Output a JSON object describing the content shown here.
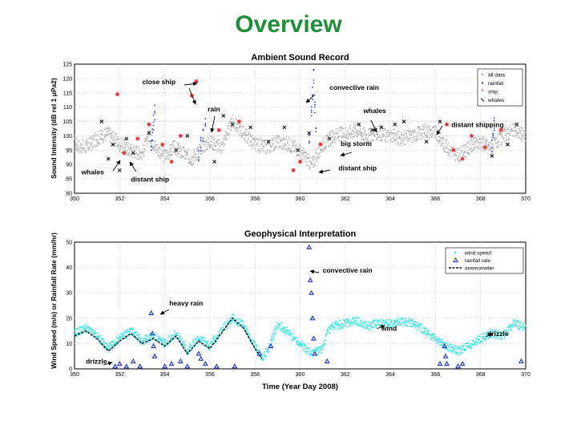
{
  "slide": {
    "title": "Overview"
  },
  "chart_data": [
    {
      "type": "scatter",
      "title": "Ambient Sound Record",
      "xlabel": "",
      "ylabel": "Sound Intensity (dB rel 1 μPa2)",
      "xlim": [
        350,
        370
      ],
      "ylim": [
        80,
        125
      ],
      "xticks": [
        350,
        352,
        354,
        356,
        358,
        360,
        362,
        364,
        366,
        368,
        370
      ],
      "yticks": [
        80,
        85,
        90,
        95,
        100,
        105,
        110,
        115,
        120,
        125
      ],
      "grid": true,
      "legend_position": "top-right",
      "legend": [
        "all data",
        "rainfall",
        "ship",
        "whales"
      ],
      "colors": {
        "all data": "#aaaaaa",
        "rainfall": "#1a2fd6",
        "ship": "#e8262a",
        "whales": "#111111"
      },
      "baseline": {
        "x": [
          350,
          350.5,
          351,
          351.5,
          352,
          352.5,
          353,
          353.3,
          353.6,
          354,
          354.4,
          354.8,
          355.2,
          355.6,
          356,
          356.5,
          357,
          357.5,
          358,
          358.5,
          359,
          359.5,
          360,
          360.3,
          360.5,
          360.8,
          361,
          361.5,
          362,
          362.5,
          363,
          363.5,
          364,
          364.5,
          365,
          365.5,
          366,
          366.5,
          367,
          367.5,
          368,
          368.5,
          369,
          369.5,
          370
        ],
        "y": [
          97,
          96,
          99,
          101,
          97,
          95,
          94,
          100,
          96,
          93,
          96,
          94,
          92,
          96,
          98,
          96,
          105,
          101,
          97,
          96,
          98,
          97,
          95,
          92,
          90,
          94,
          97,
          100,
          101,
          102,
          100,
          101,
          100,
          99,
          100,
          102,
          101,
          96,
          93,
          96,
          98,
          96,
          100,
          102,
          100
        ]
      },
      "rainfall": {
        "x": [
          353.4,
          353.45,
          353.5,
          353.55,
          355.5,
          355.6,
          355.7,
          355.8,
          360.4,
          360.5,
          360.55,
          360.6,
          360.65,
          360.7,
          368.5,
          368.55,
          368.6
        ],
        "y": [
          96,
          100,
          105,
          108,
          92,
          97,
          101,
          105,
          100,
          108,
          114,
          121,
          110,
          102,
          96,
          101,
          104
        ]
      },
      "ship": {
        "x": [
          351.9,
          352.2,
          352.8,
          353.3,
          353.9,
          354.3,
          354.7,
          355.2,
          355.4,
          356.4,
          357.3,
          359.7,
          360.0,
          360.9,
          366.5,
          366.8,
          367.2,
          367.6,
          368.2,
          368.9
        ],
        "y": [
          114.5,
          94,
          99,
          104,
          97,
          91,
          100,
          114,
          119,
          102,
          105,
          88,
          91,
          97,
          104,
          95,
          92,
          100,
          96,
          102
        ]
      },
      "whales": {
        "x": [
          351.2,
          351.5,
          351.7,
          352.0,
          352.3,
          352.6,
          353.3,
          354.5,
          355.0,
          356.2,
          356.6,
          357.0,
          357.8,
          358.6,
          359.3,
          359.9,
          360.4,
          361.3,
          362.6,
          363.2,
          363.6,
          364.2,
          364.6,
          365.6,
          366.2,
          368.5,
          369.2,
          369.6
        ],
        "y": [
          105,
          92,
          97,
          88,
          99,
          94,
          101,
          95,
          100,
          91,
          107,
          104,
          103,
          98,
          103,
          95,
          101,
          99,
          104,
          102,
          103,
          104,
          105,
          98,
          105,
          93,
          97,
          104
        ]
      },
      "annotations": [
        {
          "text": "close ship",
          "x": 353.0,
          "y": 118
        },
        {
          "text": "convective rain",
          "x": 361.3,
          "y": 116
        },
        {
          "text": "rain",
          "x": 355.9,
          "y": 108.5
        },
        {
          "text": "whales",
          "x": 362.8,
          "y": 108
        },
        {
          "text": "distant shipping",
          "x": 366.7,
          "y": 103
        },
        {
          "text": "big storm",
          "x": 361.8,
          "y": 96.5
        },
        {
          "text": "distant ship",
          "x": 361.7,
          "y": 88
        },
        {
          "text": "whales",
          "x": 350.3,
          "y": 86.5
        },
        {
          "text": "distant ship",
          "x": 352.5,
          "y": 84
        }
      ]
    },
    {
      "type": "scatter",
      "title": "Geophysical Interpretation",
      "xlabel": "Time (Year Day 2008)",
      "ylabel": "Wind Speed (m/s) or Rainfall Rate (mm/hr)",
      "xlim": [
        350,
        370
      ],
      "ylim": [
        0,
        50
      ],
      "xticks": [
        350,
        352,
        354,
        356,
        358,
        360,
        362,
        364,
        366,
        368,
        370
      ],
      "yticks": [
        0,
        10,
        20,
        30,
        40,
        50
      ],
      "grid": true,
      "legend_position": "top-right",
      "legend": [
        "wind speed",
        "rainfall rate",
        "anemometer"
      ],
      "colors": {
        "wind speed": "#2ee6e6",
        "rainfall rate": "#1a2fd6",
        "anemometer": "#111111"
      },
      "wind": {
        "x": [
          350,
          350.5,
          351,
          351.5,
          352,
          352.5,
          353,
          353.5,
          354,
          354.5,
          355,
          355.5,
          356,
          356.5,
          357,
          357.5,
          358,
          358.3,
          358.6,
          359,
          359.5,
          360,
          360.5,
          361,
          361.2,
          361.5,
          362,
          362.5,
          363,
          363.5,
          364,
          364.5,
          365,
          365.5,
          366,
          366.5,
          367,
          367.5,
          368,
          368.5,
          369,
          369.5,
          370
        ],
        "y": [
          14,
          16,
          13,
          8,
          12,
          15,
          11,
          13,
          10,
          14,
          7,
          12,
          9,
          15,
          20,
          17,
          9,
          4,
          8,
          18,
          14,
          10,
          6,
          8,
          14,
          17,
          18,
          19,
          17,
          18,
          18,
          19,
          18,
          15,
          12,
          9,
          7,
          9,
          12,
          14,
          13,
          18,
          16
        ]
      },
      "anemometer": {
        "x": [
          350,
          350.5,
          351,
          351.5,
          352,
          352.5,
          353,
          353.5,
          354,
          354.5,
          355,
          355.5,
          356,
          356.5,
          357,
          357.5,
          358,
          358.3
        ],
        "y": [
          13,
          15,
          12,
          7,
          11,
          14,
          10,
          12,
          9,
          13,
          6,
          11,
          8,
          14,
          20,
          16,
          8,
          4
        ]
      },
      "rainfall": {
        "x": [
          351.8,
          352.0,
          352.3,
          352.6,
          352.9,
          353.4,
          353.45,
          353.5,
          353.55,
          354.0,
          354.3,
          354.7,
          355.0,
          355.5,
          355.6,
          355.8,
          356.3,
          357.1,
          358.2,
          358.7,
          360.4,
          360.45,
          360.5,
          360.55,
          360.6,
          360.65,
          361.2,
          366.2,
          366.4,
          366.45,
          366.5,
          367.0,
          367.2,
          369.8
        ],
        "y": [
          1,
          2,
          1,
          3,
          1,
          22,
          14,
          9,
          5,
          1,
          2,
          3,
          1,
          6,
          4,
          2,
          1,
          1,
          6,
          9,
          48,
          35,
          30,
          20,
          12,
          6,
          3,
          2,
          9,
          5,
          2,
          1,
          2,
          3
        ]
      },
      "annotations": [
        {
          "text": "convective rain",
          "x": 361.0,
          "y": 38
        },
        {
          "text": "heavy rain",
          "x": 354.2,
          "y": 25
        },
        {
          "text": "wind",
          "x": 363.6,
          "y": 15
        },
        {
          "text": "drizzle",
          "x": 368.3,
          "y": 13
        },
        {
          "text": "drizzle",
          "x": 350.5,
          "y": 2
        }
      ]
    }
  ]
}
